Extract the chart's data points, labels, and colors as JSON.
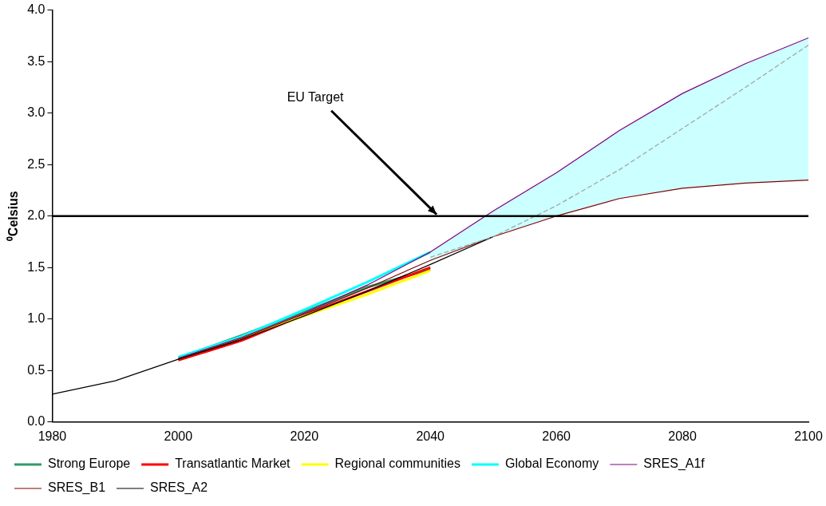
{
  "chart_data": {
    "type": "line",
    "ylabel": "⁰Celsius",
    "xlim": [
      1980,
      2100
    ],
    "xticks": [
      1980,
      2000,
      2020,
      2040,
      2060,
      2080,
      2100
    ],
    "ylim": [
      0,
      4
    ],
    "yticks": [
      {
        "value": 0,
        "label": "0.0"
      },
      {
        "value": 0.5,
        "label": "0.5"
      },
      {
        "value": 1,
        "label": "1.0"
      },
      {
        "value": 1.5,
        "label": "1.5"
      },
      {
        "value": 2,
        "label": "2.0"
      },
      {
        "value": 2.5,
        "label": "2.5"
      },
      {
        "value": 3,
        "label": "3.0"
      },
      {
        "value": 3.5,
        "label": "3.5"
      },
      {
        "value": 4,
        "label": "4.0"
      }
    ],
    "grid": false,
    "legend": "bottom",
    "marker": "none",
    "ref_lines": [
      {
        "axis": "y",
        "value": 2,
        "color": "#000000"
      }
    ],
    "annotations": [
      {
        "text": "EU Target",
        "x": 2041,
        "y": 2
      }
    ],
    "series": [
      {
        "name": "Strong Europe",
        "color": "#339966",
        "x": [
          2000,
          2010,
          2020,
          2030,
          2040
        ],
        "values": [
          0.62,
          0.84,
          1.07,
          1.31,
          1.48
        ]
      },
      {
        "name": "Transatlantic Market",
        "color": "#ff0000",
        "x": [
          2000,
          2010,
          2020,
          2030,
          2040
        ],
        "values": [
          0.6,
          0.79,
          1.04,
          1.27,
          1.5
        ]
      },
      {
        "name": "Regional communities",
        "color": "#ffff00",
        "x": [
          2000,
          2010,
          2020,
          2030,
          2040
        ],
        "values": [
          0.62,
          0.82,
          1.03,
          1.24,
          1.47
        ]
      },
      {
        "name": "Global Economy",
        "color": "#00ffff",
        "x": [
          2000,
          2010,
          2020,
          2030,
          2040
        ],
        "values": [
          0.63,
          0.83,
          1.09,
          1.36,
          1.65
        ]
      },
      {
        "name": "SRES_A1f",
        "color": "#800080",
        "x": [
          2000,
          2010,
          2020,
          2030,
          2040,
          2050,
          2060,
          2070,
          2080,
          2090,
          2100
        ],
        "values": [
          0.62,
          0.82,
          1.06,
          1.33,
          1.65,
          2.05,
          2.42,
          2.83,
          3.19,
          3.48,
          3.73
        ]
      },
      {
        "name": "SRES_B1",
        "color": "#800000",
        "x": [
          2000,
          2010,
          2020,
          2030,
          2040,
          2050,
          2060,
          2070,
          2080,
          2090,
          2100
        ],
        "values": [
          0.61,
          0.81,
          1.05,
          1.3,
          1.57,
          1.8,
          2.0,
          2.17,
          2.27,
          2.32,
          2.35
        ]
      },
      {
        "name": "SRES_A2",
        "color": "#000000",
        "x": [
          1980,
          1990,
          2000,
          2010,
          2020,
          2030,
          2040,
          2050
        ],
        "values": [
          0.27,
          0.4,
          0.61,
          0.8,
          1.03,
          1.27,
          1.53,
          1.8
        ]
      },
      {
        "color": "#a0a0a0",
        "line_style": "dashed",
        "x": [
          2040,
          2050,
          2060,
          2070,
          2080,
          2090,
          2100
        ],
        "values": [
          1.6,
          1.8,
          2.1,
          2.45,
          2.85,
          3.25,
          3.66
        ],
        "lower": [
          1.57,
          1.8,
          2.0,
          2.17,
          2.27,
          2.32,
          2.35
        ],
        "upper": [
          1.65,
          2.05,
          2.42,
          2.83,
          3.19,
          3.48,
          3.73
        ]
      }
    ]
  }
}
